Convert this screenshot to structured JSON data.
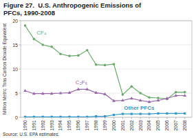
{
  "chart_data": {
    "type": "line",
    "title": "Figure 27.  U.S. Anthropogenic Emissions of\nPFCs, 1990-2008",
    "ylabel": "Million Metric Tons Carbon Dioxide Equivalent",
    "source": "Source: U.S. EPA estimates.",
    "x": [
      1990,
      1991,
      1992,
      1993,
      1994,
      1995,
      1996,
      1997,
      1998,
      1999,
      2000,
      2001,
      2002,
      2003,
      2004,
      2005,
      2006,
      2007,
      2008
    ],
    "series": [
      {
        "name": "CF₄",
        "color": "#6aaa6a",
        "marker": "circle",
        "values": [
          19.0,
          16.2,
          15.0,
          14.6,
          13.1,
          12.7,
          12.8,
          13.9,
          10.9,
          10.8,
          11.0,
          4.7,
          6.4,
          5.0,
          4.1,
          4.0,
          3.8,
          5.2,
          5.2
        ]
      },
      {
        "name": "C₂F₆",
        "color": "#9966aa",
        "marker": "triangle",
        "values": [
          5.5,
          4.9,
          4.9,
          4.9,
          5.0,
          5.1,
          5.8,
          5.8,
          5.1,
          4.8,
          3.4,
          3.5,
          3.9,
          3.5,
          3.2,
          3.5,
          3.9,
          4.5,
          4.5
        ]
      },
      {
        "name": "Other PFCs",
        "color": "#3399cc",
        "marker": "square",
        "values": [
          0.1,
          0.1,
          0.1,
          0.1,
          0.1,
          0.1,
          0.1,
          0.1,
          0.2,
          0.2,
          0.5,
          0.7,
          0.7,
          0.7,
          0.7,
          0.8,
          0.8,
          0.8,
          0.8
        ]
      }
    ],
    "xlim": [
      1989.5,
      2008.8
    ],
    "xticks": [
      1990,
      1991,
      1992,
      1993,
      1994,
      1995,
      1996,
      1997,
      1998,
      1999,
      2000,
      2001,
      2002,
      2003,
      2004,
      2005,
      2006,
      2007,
      2008
    ],
    "ylim": [
      0,
      20
    ],
    "yticks": [
      0,
      5,
      10,
      15,
      20
    ],
    "grid": true
  }
}
